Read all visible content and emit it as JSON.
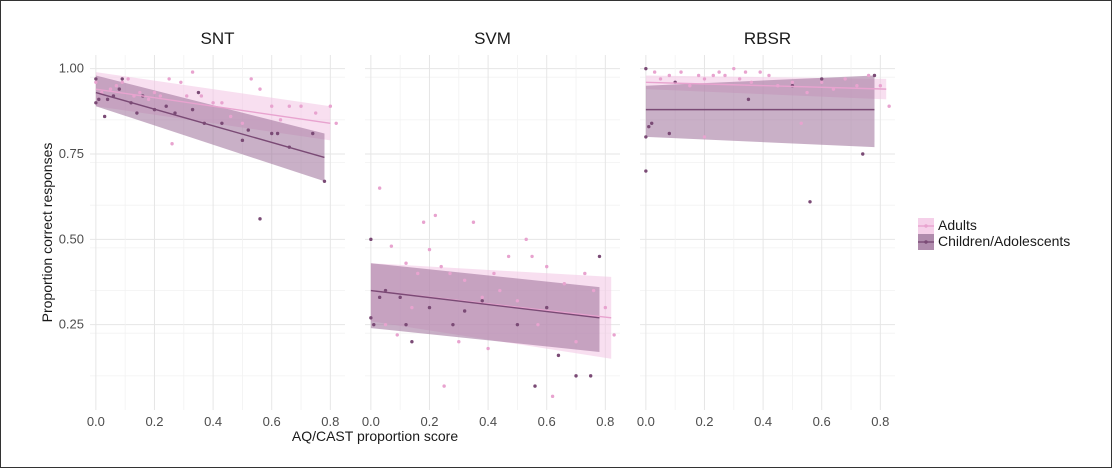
{
  "chart_data": {
    "type": "scatter",
    "xlabel": "AQ/CAST proportion score",
    "ylabel": "Proportion correct responses",
    "xlim": [
      -0.02,
      0.85
    ],
    "ylim": [
      0.0,
      1.04
    ],
    "x_ticks": [
      "0.0",
      "0.2",
      "0.4",
      "0.6",
      "0.8"
    ],
    "x_tick_values": [
      0.0,
      0.2,
      0.4,
      0.6,
      0.8
    ],
    "y_ticks": [
      "0.25",
      "0.50",
      "0.75",
      "1.00"
    ],
    "y_tick_values": [
      0.25,
      0.5,
      0.75,
      1.0
    ],
    "grid": true,
    "legend_position": "right",
    "legend": [
      "Adults",
      "Children/Adolescents"
    ],
    "series_colors": {
      "Adults": "#e8a3cf",
      "Children/Adolescents": "#7a4a75"
    },
    "band_colors": {
      "Adults": "#f2c4e3",
      "Children/Adolescents": "#9c6f99"
    },
    "panels": [
      {
        "title": "SNT",
        "series": [
          {
            "name": "Adults",
            "fit": {
              "x": [
                0.0,
                0.8
              ],
              "y": [
                0.94,
                0.84
              ]
            },
            "ci_lower": [
              0.89,
              0.79
            ],
            "ci_upper": [
              0.99,
              0.89
            ],
            "points": [
              [
                0.0,
                0.96
              ],
              [
                0.02,
                0.93
              ],
              [
                0.05,
                0.94
              ],
              [
                0.07,
                0.95
              ],
              [
                0.09,
                0.96
              ],
              [
                0.11,
                0.97
              ],
              [
                0.13,
                0.92
              ],
              [
                0.15,
                0.93
              ],
              [
                0.18,
                0.91
              ],
              [
                0.2,
                0.93
              ],
              [
                0.22,
                0.92
              ],
              [
                0.25,
                0.97
              ],
              [
                0.26,
                0.78
              ],
              [
                0.29,
                0.96
              ],
              [
                0.31,
                0.92
              ],
              [
                0.33,
                0.99
              ],
              [
                0.36,
                0.92
              ],
              [
                0.4,
                0.9
              ],
              [
                0.43,
                0.9
              ],
              [
                0.46,
                0.86
              ],
              [
                0.5,
                0.84
              ],
              [
                0.53,
                0.97
              ],
              [
                0.56,
                0.94
              ],
              [
                0.6,
                0.89
              ],
              [
                0.63,
                0.85
              ],
              [
                0.66,
                0.89
              ],
              [
                0.7,
                0.89
              ],
              [
                0.75,
                0.87
              ],
              [
                0.8,
                0.89
              ],
              [
                0.82,
                0.84
              ]
            ]
          },
          {
            "name": "Children/Adolescents",
            "fit": {
              "x": [
                0.0,
                0.78
              ],
              "y": [
                0.93,
                0.74
              ]
            },
            "ci_lower": [
              0.89,
              0.67
            ],
            "ci_upper": [
              0.98,
              0.81
            ],
            "points": [
              [
                0.0,
                0.97
              ],
              [
                0.0,
                0.9
              ],
              [
                0.01,
                0.91
              ],
              [
                0.03,
                0.86
              ],
              [
                0.04,
                0.91
              ],
              [
                0.06,
                0.92
              ],
              [
                0.08,
                0.94
              ],
              [
                0.09,
                0.97
              ],
              [
                0.12,
                0.9
              ],
              [
                0.14,
                0.87
              ],
              [
                0.16,
                0.92
              ],
              [
                0.2,
                0.88
              ],
              [
                0.24,
                0.89
              ],
              [
                0.27,
                0.87
              ],
              [
                0.33,
                0.88
              ],
              [
                0.35,
                0.93
              ],
              [
                0.37,
                0.84
              ],
              [
                0.43,
                0.84
              ],
              [
                0.5,
                0.79
              ],
              [
                0.52,
                0.82
              ],
              [
                0.56,
                0.56
              ],
              [
                0.6,
                0.81
              ],
              [
                0.62,
                0.81
              ],
              [
                0.66,
                0.77
              ],
              [
                0.74,
                0.81
              ],
              [
                0.78,
                0.67
              ]
            ]
          }
        ]
      },
      {
        "title": "SVM",
        "series": [
          {
            "name": "Adults",
            "fit": {
              "x": [
                0.0,
                0.82
              ],
              "y": [
                0.35,
                0.27
              ]
            },
            "ci_lower": [
              0.26,
              0.15
            ],
            "ci_upper": [
              0.43,
              0.39
            ],
            "points": [
              [
                0.03,
                0.65
              ],
              [
                0.05,
                0.25
              ],
              [
                0.07,
                0.48
              ],
              [
                0.09,
                0.22
              ],
              [
                0.12,
                0.43
              ],
              [
                0.14,
                0.3
              ],
              [
                0.16,
                0.4
              ],
              [
                0.18,
                0.55
              ],
              [
                0.2,
                0.47
              ],
              [
                0.22,
                0.57
              ],
              [
                0.24,
                0.42
              ],
              [
                0.25,
                0.07
              ],
              [
                0.27,
                0.4
              ],
              [
                0.3,
                0.2
              ],
              [
                0.32,
                0.38
              ],
              [
                0.35,
                0.55
              ],
              [
                0.38,
                0.33
              ],
              [
                0.4,
                0.18
              ],
              [
                0.42,
                0.4
              ],
              [
                0.44,
                0.35
              ],
              [
                0.47,
                0.45
              ],
              [
                0.5,
                0.32
              ],
              [
                0.53,
                0.5
              ],
              [
                0.55,
                0.45
              ],
              [
                0.57,
                0.25
              ],
              [
                0.6,
                0.42
              ],
              [
                0.62,
                0.04
              ],
              [
                0.66,
                0.37
              ],
              [
                0.7,
                0.2
              ],
              [
                0.73,
                0.4
              ],
              [
                0.76,
                0.35
              ],
              [
                0.8,
                0.3
              ],
              [
                0.83,
                0.22
              ]
            ]
          },
          {
            "name": "Children/Adolescents",
            "fit": {
              "x": [
                0.0,
                0.78
              ],
              "y": [
                0.35,
                0.27
              ]
            },
            "ci_lower": [
              0.24,
              0.17
            ],
            "ci_upper": [
              0.43,
              0.36
            ],
            "points": [
              [
                0.0,
                0.5
              ],
              [
                0.0,
                0.27
              ],
              [
                0.01,
                0.25
              ],
              [
                0.03,
                0.33
              ],
              [
                0.05,
                0.35
              ],
              [
                0.1,
                0.33
              ],
              [
                0.12,
                0.25
              ],
              [
                0.14,
                0.2
              ],
              [
                0.2,
                0.3
              ],
              [
                0.28,
                0.25
              ],
              [
                0.32,
                0.29
              ],
              [
                0.38,
                0.32
              ],
              [
                0.5,
                0.25
              ],
              [
                0.56,
                0.07
              ],
              [
                0.6,
                0.3
              ],
              [
                0.64,
                0.16
              ],
              [
                0.7,
                0.1
              ],
              [
                0.75,
                0.1
              ],
              [
                0.78,
                0.45
              ]
            ]
          }
        ]
      },
      {
        "title": "RBSR",
        "series": [
          {
            "name": "Adults",
            "fit": {
              "x": [
                0.0,
                0.82
              ],
              "y": [
                0.96,
                0.94
              ]
            },
            "ci_lower": [
              0.94,
              0.91
            ],
            "ci_upper": [
              0.98,
              0.97
            ],
            "points": [
              [
                0.03,
                0.99
              ],
              [
                0.05,
                0.97
              ],
              [
                0.08,
                0.98
              ],
              [
                0.1,
                0.96
              ],
              [
                0.12,
                0.99
              ],
              [
                0.15,
                0.95
              ],
              [
                0.18,
                0.98
              ],
              [
                0.2,
                0.97
              ],
              [
                0.23,
                0.98
              ],
              [
                0.25,
                0.99
              ],
              [
                0.27,
                0.98
              ],
              [
                0.3,
                1.0
              ],
              [
                0.32,
                0.97
              ],
              [
                0.34,
                0.99
              ],
              [
                0.36,
                0.96
              ],
              [
                0.39,
                0.99
              ],
              [
                0.42,
                0.98
              ],
              [
                0.45,
                0.95
              ],
              [
                0.5,
                0.96
              ],
              [
                0.55,
                0.93
              ],
              [
                0.6,
                0.96
              ],
              [
                0.64,
                0.94
              ],
              [
                0.68,
                0.97
              ],
              [
                0.72,
                0.95
              ],
              [
                0.76,
                0.98
              ],
              [
                0.8,
                0.95
              ],
              [
                0.83,
                0.89
              ],
              [
                0.2,
                0.8
              ],
              [
                0.53,
                0.84
              ]
            ]
          },
          {
            "name": "Children/Adolescents",
            "fit": {
              "x": [
                0.0,
                0.78
              ],
              "y": [
                0.88,
                0.88
              ]
            },
            "ci_lower": [
              0.8,
              0.77
            ],
            "ci_upper": [
              0.95,
              0.98
            ],
            "points": [
              [
                0.0,
                1.0
              ],
              [
                0.0,
                0.7
              ],
              [
                0.0,
                0.8
              ],
              [
                0.01,
                0.83
              ],
              [
                0.02,
                0.84
              ],
              [
                0.08,
                0.81
              ],
              [
                0.1,
                0.96
              ],
              [
                0.35,
                0.91
              ],
              [
                0.5,
                0.95
              ],
              [
                0.56,
                0.61
              ],
              [
                0.6,
                0.97
              ],
              [
                0.74,
                0.75
              ],
              [
                0.78,
                0.98
              ]
            ]
          }
        ]
      }
    ]
  }
}
